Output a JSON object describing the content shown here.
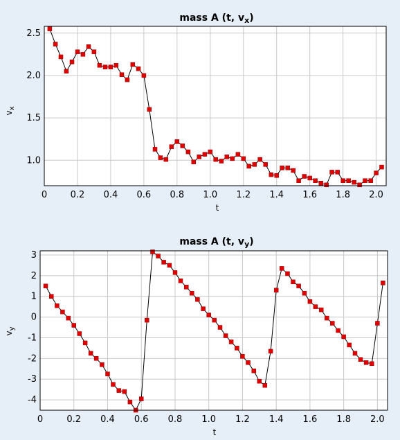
{
  "chart_data": [
    {
      "type": "line",
      "title": "mass A (t, v",
      "title_subscript": "x",
      "title_close": ")",
      "xlabel": "t",
      "ylabel": "v",
      "ylabel_subscript": "x",
      "xlim": [
        0,
        2.06
      ],
      "ylim": [
        0.7,
        2.58
      ],
      "xticks": [
        0,
        0.2,
        0.4,
        0.6,
        0.8,
        1.0,
        1.2,
        1.4,
        1.6,
        1.8,
        2.0
      ],
      "xtick_labels": [
        "0",
        "0.2",
        "0.4",
        "0.6",
        "0.8",
        "1.0",
        "1.2",
        "1.4",
        "1.6",
        "1.8",
        "2.0"
      ],
      "yticks": [
        1.0,
        1.5,
        2.0,
        2.5
      ],
      "ytick_labels": [
        "1.0",
        "1.5",
        "2.0",
        "2.5"
      ],
      "grid": true,
      "marker_color": "#dd0000",
      "line_color": "#000000",
      "x": [
        0.033,
        0.067,
        0.1,
        0.133,
        0.167,
        0.2,
        0.233,
        0.267,
        0.3,
        0.333,
        0.367,
        0.4,
        0.433,
        0.467,
        0.5,
        0.533,
        0.567,
        0.6,
        0.633,
        0.667,
        0.7,
        0.733,
        0.767,
        0.8,
        0.833,
        0.867,
        0.9,
        0.933,
        0.967,
        1.0,
        1.033,
        1.067,
        1.1,
        1.133,
        1.167,
        1.2,
        1.233,
        1.267,
        1.3,
        1.333,
        1.367,
        1.4,
        1.433,
        1.467,
        1.5,
        1.533,
        1.567,
        1.6,
        1.633,
        1.667,
        1.7,
        1.733,
        1.767,
        1.8,
        1.833,
        1.867,
        1.9,
        1.933,
        1.967,
        2.0,
        2.033
      ],
      "y": [
        2.55,
        2.37,
        2.22,
        2.05,
        2.16,
        2.28,
        2.25,
        2.34,
        2.28,
        2.12,
        2.1,
        2.1,
        2.12,
        2.01,
        1.95,
        2.13,
        2.08,
        2.0,
        1.6,
        1.13,
        1.03,
        1.01,
        1.16,
        1.22,
        1.17,
        1.1,
        0.98,
        1.04,
        1.07,
        1.1,
        1.01,
        0.99,
        1.04,
        1.02,
        1.07,
        1.02,
        0.93,
        0.95,
        1.01,
        0.95,
        0.83,
        0.82,
        0.91,
        0.91,
        0.88,
        0.76,
        0.81,
        0.79,
        0.76,
        0.73,
        0.71,
        0.86,
        0.86,
        0.76,
        0.76,
        0.74,
        0.71,
        0.76,
        0.76,
        0.85,
        0.92
      ]
    },
    {
      "type": "line",
      "title": "mass A (t, v",
      "title_subscript": "y",
      "title_close": ")",
      "xlabel": "t",
      "ylabel": "v",
      "ylabel_subscript": "y",
      "xlim": [
        0,
        2.06
      ],
      "ylim": [
        -4.5,
        3.2
      ],
      "xticks": [
        0,
        0.2,
        0.4,
        0.6,
        0.8,
        1.0,
        1.2,
        1.4,
        1.6,
        1.8,
        2.0
      ],
      "xtick_labels": [
        "0",
        "0.2",
        "0.4",
        "0.6",
        "0.8",
        "1.0",
        "1.2",
        "1.4",
        "1.6",
        "1.8",
        "2.0"
      ],
      "yticks": [
        -4,
        -3,
        -2,
        -1,
        0,
        1,
        2,
        3
      ],
      "ytick_labels": [
        "-4",
        "-3",
        "-2",
        "-1",
        "0",
        "1",
        "2",
        "3"
      ],
      "grid": true,
      "marker_color": "#dd0000",
      "line_color": "#000000",
      "x": [
        0.033,
        0.067,
        0.1,
        0.133,
        0.167,
        0.2,
        0.233,
        0.267,
        0.3,
        0.333,
        0.367,
        0.4,
        0.433,
        0.467,
        0.5,
        0.533,
        0.567,
        0.6,
        0.633,
        0.667,
        0.7,
        0.733,
        0.767,
        0.8,
        0.833,
        0.867,
        0.9,
        0.933,
        0.967,
        1.0,
        1.033,
        1.067,
        1.1,
        1.133,
        1.167,
        1.2,
        1.233,
        1.267,
        1.3,
        1.333,
        1.367,
        1.4,
        1.433,
        1.467,
        1.5,
        1.533,
        1.567,
        1.6,
        1.633,
        1.667,
        1.7,
        1.733,
        1.767,
        1.8,
        1.833,
        1.867,
        1.9,
        1.933,
        1.967,
        2.0,
        2.033
      ],
      "y": [
        1.5,
        1.0,
        0.55,
        0.25,
        -0.05,
        -0.4,
        -0.8,
        -1.25,
        -1.75,
        -2.0,
        -2.3,
        -2.75,
        -3.25,
        -3.55,
        -3.6,
        -4.1,
        -4.5,
        -3.95,
        -0.15,
        3.15,
        2.95,
        2.65,
        2.5,
        2.15,
        1.75,
        1.45,
        1.15,
        0.85,
        0.4,
        0.1,
        -0.15,
        -0.5,
        -0.9,
        -1.2,
        -1.5,
        -1.9,
        -2.2,
        -2.6,
        -3.1,
        -3.3,
        -1.65,
        1.3,
        2.35,
        2.1,
        1.7,
        1.5,
        1.15,
        0.75,
        0.5,
        0.35,
        -0.05,
        -0.3,
        -0.65,
        -0.95,
        -1.35,
        -1.75,
        -2.05,
        -2.2,
        -2.25,
        -0.3,
        1.65
      ]
    }
  ]
}
